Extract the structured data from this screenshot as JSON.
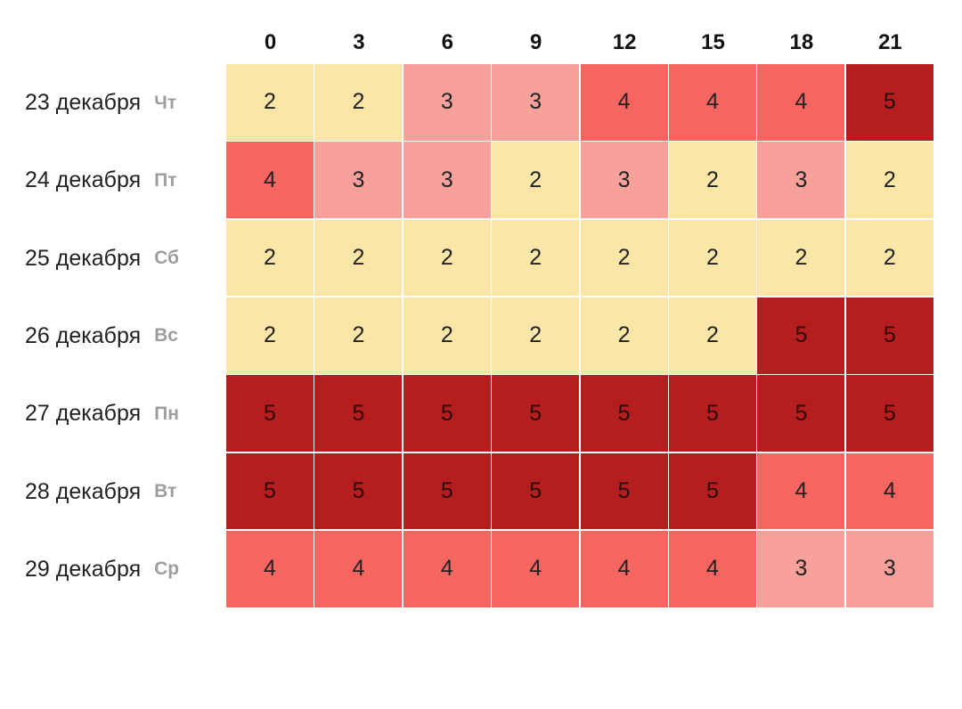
{
  "chart_data": {
    "type": "heatmap",
    "title": "",
    "xlabel": "",
    "ylabel": "",
    "x": [
      "0",
      "3",
      "6",
      "9",
      "12",
      "15",
      "18",
      "21"
    ],
    "rows": [
      {
        "date": "23 декабря",
        "day": "Чт",
        "values": [
          2,
          2,
          3,
          3,
          4,
          4,
          4,
          5
        ]
      },
      {
        "date": "24 декабря",
        "day": "Пт",
        "values": [
          4,
          3,
          3,
          2,
          3,
          2,
          3,
          2
        ]
      },
      {
        "date": "25 декабря",
        "day": "Сб",
        "values": [
          2,
          2,
          2,
          2,
          2,
          2,
          2,
          2
        ]
      },
      {
        "date": "26 декабря",
        "day": "Вс",
        "values": [
          2,
          2,
          2,
          2,
          2,
          2,
          5,
          5
        ]
      },
      {
        "date": "27 декабря",
        "day": "Пн",
        "values": [
          5,
          5,
          5,
          5,
          5,
          5,
          5,
          5
        ]
      },
      {
        "date": "28 декабря",
        "day": "Вт",
        "values": [
          5,
          5,
          5,
          5,
          5,
          5,
          4,
          4
        ]
      },
      {
        "date": "29 декабря",
        "day": "Ср",
        "values": [
          4,
          4,
          4,
          4,
          4,
          4,
          3,
          3
        ]
      }
    ],
    "color_scale": {
      "2": "#fbe6a7",
      "3": "#f8a09a",
      "4": "#f56660",
      "5": "#b51e1e"
    },
    "grid": false
  }
}
